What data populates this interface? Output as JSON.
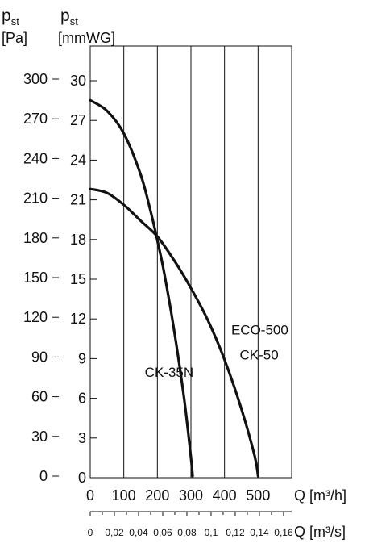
{
  "chart_data": {
    "type": "line",
    "y_axis_pa": {
      "symbol": "p",
      "subscript": "st",
      "unit": "[Pa]",
      "ticks": [
        "300",
        "270",
        "240",
        "210",
        "180",
        "150",
        "120",
        "90",
        "60",
        "30",
        "0"
      ],
      "range": [
        0,
        300
      ]
    },
    "y_axis_mmwg": {
      "symbol": "p",
      "subscript": "st",
      "unit": "[mmWG]",
      "ticks": [
        "30",
        "27",
        "24",
        "21",
        "18",
        "15",
        "12",
        "9",
        "6",
        "3",
        "0"
      ],
      "range": [
        0,
        30
      ]
    },
    "x_axis_m3h": {
      "label": "Q [m³/h]",
      "ticks": [
        "0",
        "100",
        "200",
        "300",
        "400",
        "500"
      ],
      "range": [
        0,
        600
      ]
    },
    "x_axis_m3s": {
      "label": "Q [m³/s]",
      "ticks": [
        "0",
        "0,02",
        "0,04",
        "0,06",
        "0,08",
        "0,1",
        "0,12",
        "0,14",
        "0,16"
      ],
      "range": [
        0,
        0.1667
      ]
    },
    "grid": "vertical",
    "series": [
      {
        "name": "CK-35N",
        "x": [
          0,
          50,
          100,
          150,
          180,
          200,
          220,
          250,
          280,
          300,
          305
        ],
        "y": [
          284,
          276,
          259,
          228,
          200,
          178,
          154,
          110,
          58,
          14,
          0
        ]
      },
      {
        "name": "ECO-500 CK-50",
        "x": [
          0,
          50,
          100,
          150,
          200,
          250,
          300,
          350,
          400,
          450,
          490,
          500
        ],
        "y": [
          217,
          214,
          205,
          193,
          181,
          163,
          142,
          118,
          88,
          51,
          15,
          0
        ]
      }
    ],
    "annotations": [
      {
        "text": "CK-35N",
        "x": 235,
        "y": 75
      },
      {
        "text": "ECO-500",
        "x": 505,
        "y": 107
      },
      {
        "text": "CK-50",
        "x": 503,
        "y": 88
      }
    ]
  }
}
